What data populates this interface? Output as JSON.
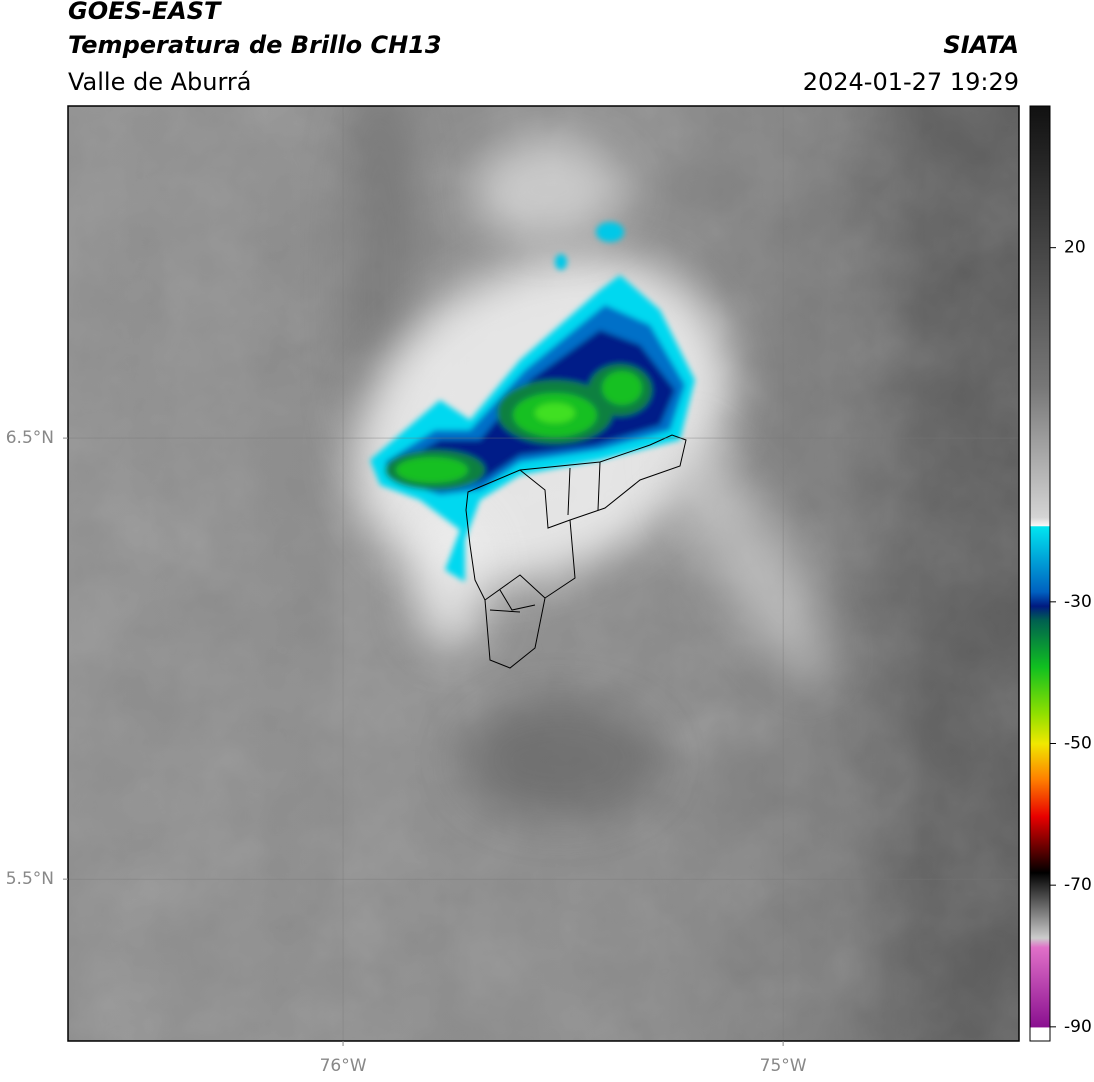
{
  "header": {
    "title": "GOES-EAST",
    "subtitle": "Temperatura de Brillo CH13",
    "region": "Valle de Aburrá",
    "source": "SIATA",
    "timestamp": "2024-01-27 19:29"
  },
  "map": {
    "lonlim": [
      -76.625,
      -74.464
    ],
    "latlim": [
      5.133,
      7.253
    ],
    "lonticks": [
      {
        "value": -76,
        "label": "76°W"
      },
      {
        "value": -75,
        "label": "75°W"
      }
    ],
    "latticks": [
      {
        "value": 6.5,
        "label": "6.5°N"
      },
      {
        "value": 5.5,
        "label": "5.5°N"
      }
    ],
    "grid": true
  },
  "colorbar": {
    "lim": [
      -92,
      40
    ],
    "ticks": [
      20,
      -30,
      -50,
      -70,
      -90
    ]
  }
}
